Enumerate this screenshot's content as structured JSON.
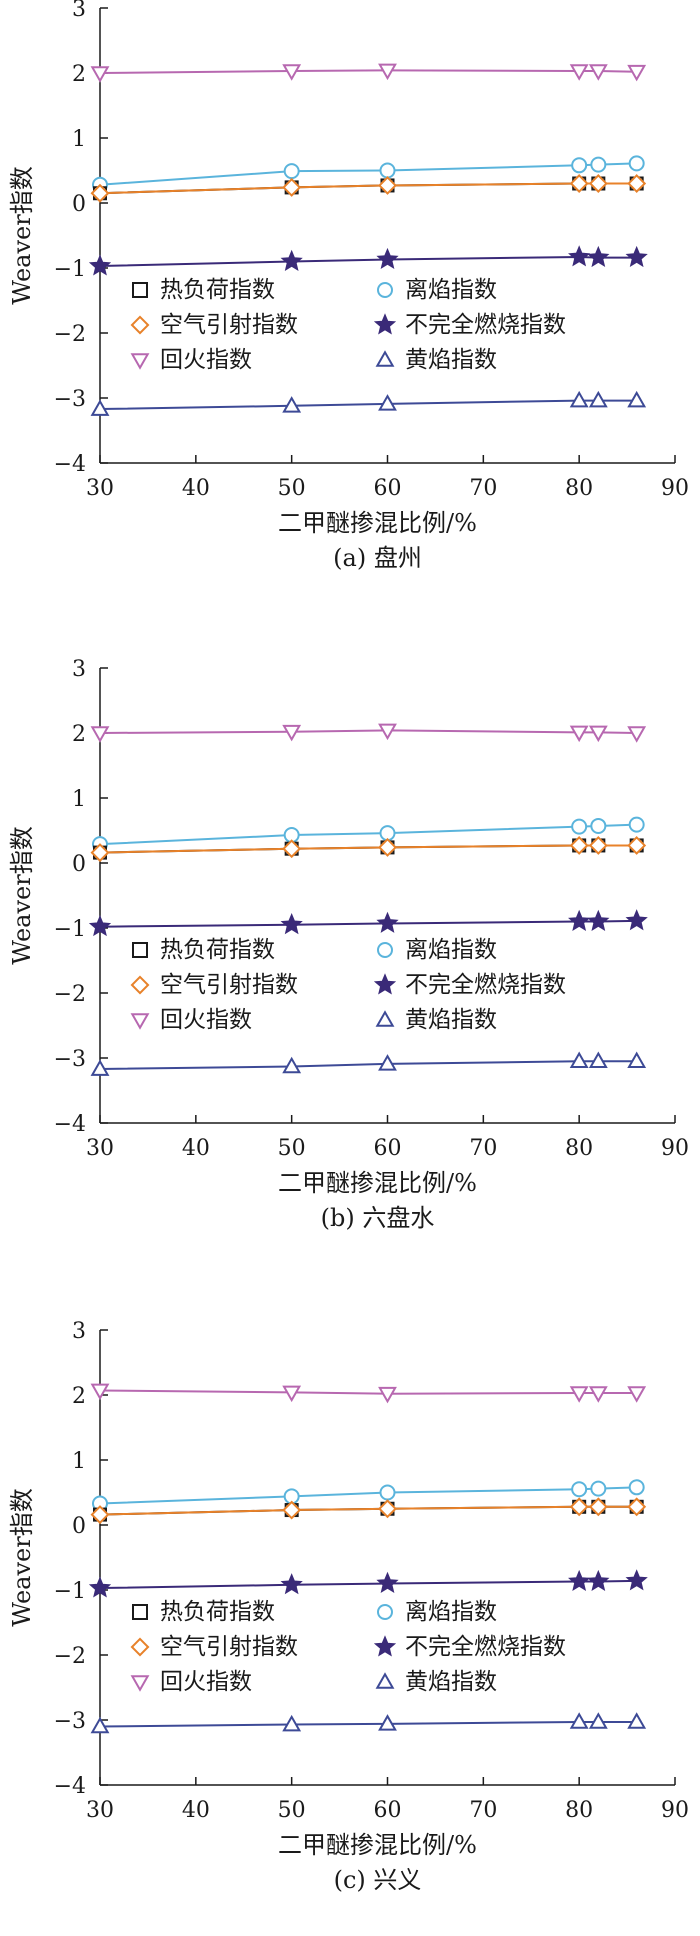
{
  "chart_data": [
    {
      "type": "line",
      "caption": "(a) 盘州",
      "xlabel": "二甲醚掺混比例/%",
      "ylabel": "Weaver指数",
      "xlim": [
        30,
        90
      ],
      "ylim": [
        -4,
        3
      ],
      "xticks": [
        "30",
        "40",
        "50",
        "60",
        "70",
        "80",
        "90"
      ],
      "yticks": [
        "3",
        "2",
        "1",
        "0",
        "−1",
        "−2",
        "−3",
        "−4"
      ],
      "x": [
        30,
        50,
        60,
        80,
        82,
        86
      ],
      "legend_position": "center-left",
      "series": [
        {
          "name": "热负荷指数",
          "marker": "square",
          "color": "#1a1a1a",
          "values": [
            0.15,
            0.24,
            0.27,
            0.3,
            0.3,
            0.3
          ]
        },
        {
          "name": "离焰指数",
          "marker": "circle",
          "color": "#5ab4dc",
          "values": [
            0.28,
            0.49,
            0.5,
            0.58,
            0.59,
            0.61
          ]
        },
        {
          "name": "空气引射指数",
          "marker": "diamond",
          "color": "#e8822a",
          "values": [
            0.15,
            0.24,
            0.27,
            0.3,
            0.3,
            0.3
          ]
        },
        {
          "name": "不完全燃烧指数",
          "marker": "star",
          "color": "#3a2a78",
          "values": [
            -0.97,
            -0.9,
            -0.87,
            -0.83,
            -0.84,
            -0.84
          ]
        },
        {
          "name": "回火指数",
          "marker": "triangle-down",
          "color": "#b768b0",
          "values": [
            2.0,
            2.03,
            2.04,
            2.03,
            2.03,
            2.02
          ]
        },
        {
          "name": "黄焰指数",
          "marker": "triangle-up",
          "color": "#3d4a96",
          "values": [
            -3.17,
            -3.12,
            -3.09,
            -3.04,
            -3.04,
            -3.04
          ]
        }
      ]
    },
    {
      "type": "line",
      "caption": "(b) 六盘水",
      "xlabel": "二甲醚掺混比例/%",
      "ylabel": "Weaver指数",
      "xlim": [
        30,
        90
      ],
      "ylim": [
        -4,
        3
      ],
      "xticks": [
        "30",
        "40",
        "50",
        "60",
        "70",
        "80",
        "90"
      ],
      "yticks": [
        "3",
        "2",
        "1",
        "0",
        "−1",
        "−2",
        "−3",
        "−4"
      ],
      "x": [
        30,
        50,
        60,
        80,
        82,
        86
      ],
      "legend_position": "center-left",
      "series": [
        {
          "name": "热负荷指数",
          "marker": "square",
          "color": "#1a1a1a",
          "values": [
            0.16,
            0.22,
            0.24,
            0.27,
            0.27,
            0.27
          ]
        },
        {
          "name": "离焰指数",
          "marker": "circle",
          "color": "#5ab4dc",
          "values": [
            0.29,
            0.43,
            0.46,
            0.56,
            0.57,
            0.59
          ]
        },
        {
          "name": "空气引射指数",
          "marker": "diamond",
          "color": "#e8822a",
          "values": [
            0.16,
            0.22,
            0.24,
            0.27,
            0.27,
            0.27
          ]
        },
        {
          "name": "不完全燃烧指数",
          "marker": "star",
          "color": "#3a2a78",
          "values": [
            -0.98,
            -0.95,
            -0.93,
            -0.9,
            -0.9,
            -0.89
          ]
        },
        {
          "name": "回火指数",
          "marker": "triangle-down",
          "color": "#b768b0",
          "values": [
            2.0,
            2.02,
            2.04,
            2.01,
            2.01,
            2.0
          ]
        },
        {
          "name": "黄焰指数",
          "marker": "triangle-up",
          "color": "#3d4a96",
          "values": [
            -3.17,
            -3.13,
            -3.09,
            -3.05,
            -3.05,
            -3.05
          ]
        }
      ]
    },
    {
      "type": "line",
      "caption": "(c) 兴义",
      "xlabel": "二甲醚掺混比例/%",
      "ylabel": "Weaver指数",
      "xlim": [
        30,
        90
      ],
      "ylim": [
        -4,
        3
      ],
      "xticks": [
        "30",
        "40",
        "50",
        "60",
        "70",
        "80",
        "90"
      ],
      "yticks": [
        "3",
        "2",
        "1",
        "0",
        "−1",
        "−2",
        "−3",
        "−4"
      ],
      "x": [
        30,
        50,
        60,
        80,
        82,
        86
      ],
      "legend_position": "center-left",
      "series": [
        {
          "name": "热负荷指数",
          "marker": "square",
          "color": "#1a1a1a",
          "values": [
            0.16,
            0.23,
            0.25,
            0.28,
            0.28,
            0.28
          ]
        },
        {
          "name": "离焰指数",
          "marker": "circle",
          "color": "#5ab4dc",
          "values": [
            0.33,
            0.44,
            0.5,
            0.55,
            0.56,
            0.58
          ]
        },
        {
          "name": "空气引射指数",
          "marker": "diamond",
          "color": "#e8822a",
          "values": [
            0.16,
            0.23,
            0.25,
            0.28,
            0.28,
            0.28
          ]
        },
        {
          "name": "不完全燃烧指数",
          "marker": "star",
          "color": "#3a2a78",
          "values": [
            -0.97,
            -0.92,
            -0.9,
            -0.87,
            -0.87,
            -0.86
          ]
        },
        {
          "name": "回火指数",
          "marker": "triangle-down",
          "color": "#b768b0",
          "values": [
            2.07,
            2.04,
            2.02,
            2.03,
            2.03,
            2.03
          ]
        },
        {
          "name": "黄焰指数",
          "marker": "triangle-up",
          "color": "#3d4a96",
          "values": [
            -3.1,
            -3.07,
            -3.06,
            -3.03,
            -3.03,
            -3.03
          ]
        }
      ]
    }
  ]
}
